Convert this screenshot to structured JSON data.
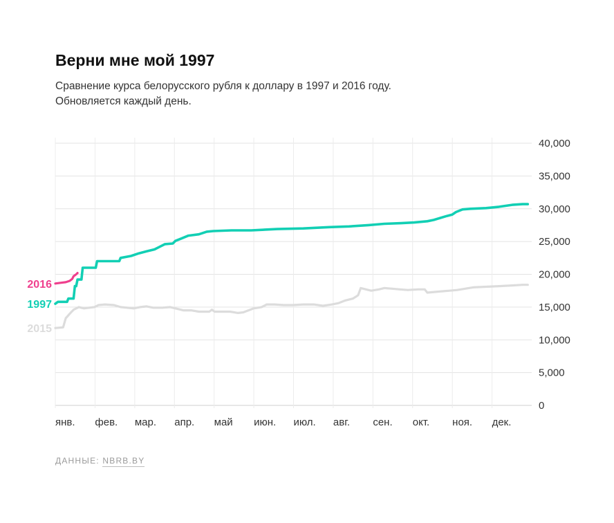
{
  "header": {
    "title": "Верни мне мой 1997",
    "subtitle_line1": "Сравнение курса белорусского рубля к доллару в 1997 и 2016 году.",
    "subtitle_line2": "Обновляется каждый день."
  },
  "source": {
    "label": "ДАННЫЕ:",
    "link": "NBRB.BY"
  },
  "chart_data": {
    "type": "line",
    "xlabel": "",
    "ylabel": "",
    "x_domain_days": [
      0,
      365
    ],
    "ylim": [
      0,
      40000
    ],
    "y_ticks": [
      0,
      5000,
      10000,
      15000,
      20000,
      25000,
      30000,
      35000,
      40000
    ],
    "y_tick_labels": [
      "0",
      "5,000",
      "10,000",
      "15,000",
      "20,000",
      "25,000",
      "30,000",
      "35,000",
      "40,000"
    ],
    "month_labels": [
      "янв.",
      "фев.",
      "мар.",
      "апр.",
      "май",
      "июн.",
      "июл.",
      "авг.",
      "сен.",
      "окт.",
      "ноя.",
      "дек."
    ],
    "grid": true,
    "legend": "inline labels at left of lines",
    "series": [
      {
        "name": "2015",
        "color": "#dcdcdc",
        "points": [
          [
            0,
            11800
          ],
          [
            6,
            11900
          ],
          [
            8,
            13300
          ],
          [
            12,
            14200
          ],
          [
            14,
            14600
          ],
          [
            16,
            14800
          ],
          [
            18,
            15000
          ],
          [
            22,
            14800
          ],
          [
            26,
            14900
          ],
          [
            30,
            15000
          ],
          [
            33,
            15300
          ],
          [
            38,
            15400
          ],
          [
            45,
            15300
          ],
          [
            50,
            15000
          ],
          [
            55,
            14900
          ],
          [
            60,
            14800
          ],
          [
            65,
            15000
          ],
          [
            70,
            15100
          ],
          [
            75,
            14900
          ],
          [
            82,
            14900
          ],
          [
            88,
            15000
          ],
          [
            92,
            14800
          ],
          [
            98,
            14500
          ],
          [
            104,
            14500
          ],
          [
            110,
            14300
          ],
          [
            118,
            14300
          ],
          [
            120,
            14600
          ],
          [
            122,
            14300
          ],
          [
            128,
            14300
          ],
          [
            134,
            14300
          ],
          [
            140,
            14100
          ],
          [
            144,
            14200
          ],
          [
            148,
            14500
          ],
          [
            152,
            14800
          ],
          [
            158,
            15000
          ],
          [
            162,
            15400
          ],
          [
            168,
            15400
          ],
          [
            175,
            15300
          ],
          [
            182,
            15300
          ],
          [
            190,
            15400
          ],
          [
            198,
            15400
          ],
          [
            205,
            15200
          ],
          [
            212,
            15400
          ],
          [
            217,
            15600
          ],
          [
            222,
            16000
          ],
          [
            228,
            16300
          ],
          [
            232,
            16800
          ],
          [
            234,
            17900
          ],
          [
            238,
            17700
          ],
          [
            242,
            17500
          ],
          [
            248,
            17700
          ],
          [
            252,
            17900
          ],
          [
            258,
            17800
          ],
          [
            264,
            17700
          ],
          [
            270,
            17600
          ],
          [
            278,
            17700
          ],
          [
            283,
            17700
          ],
          [
            285,
            17200
          ],
          [
            290,
            17300
          ],
          [
            296,
            17400
          ],
          [
            302,
            17500
          ],
          [
            308,
            17600
          ],
          [
            314,
            17800
          ],
          [
            320,
            18000
          ],
          [
            330,
            18100
          ],
          [
            340,
            18200
          ],
          [
            350,
            18300
          ],
          [
            358,
            18400
          ],
          [
            362,
            18400
          ]
        ]
      },
      {
        "name": "1997",
        "color": "#12cfb4",
        "points": [
          [
            0,
            15500
          ],
          [
            2,
            15800
          ],
          [
            9,
            15800
          ],
          [
            10,
            16300
          ],
          [
            14,
            16300
          ],
          [
            15,
            18200
          ],
          [
            16,
            18200
          ],
          [
            17,
            19200
          ],
          [
            20,
            19200
          ],
          [
            21,
            21000
          ],
          [
            31,
            21000
          ],
          [
            32,
            22000
          ],
          [
            49,
            22000
          ],
          [
            50,
            22500
          ],
          [
            58,
            22800
          ],
          [
            64,
            23200
          ],
          [
            70,
            23500
          ],
          [
            76,
            23800
          ],
          [
            80,
            24200
          ],
          [
            84,
            24600
          ],
          [
            90,
            24700
          ],
          [
            92,
            25100
          ],
          [
            97,
            25500
          ],
          [
            102,
            25900
          ],
          [
            110,
            26100
          ],
          [
            116,
            26500
          ],
          [
            121,
            26600
          ],
          [
            135,
            26700
          ],
          [
            150,
            26700
          ],
          [
            170,
            26900
          ],
          [
            190,
            27000
          ],
          [
            210,
            27200
          ],
          [
            225,
            27300
          ],
          [
            240,
            27500
          ],
          [
            252,
            27700
          ],
          [
            265,
            27800
          ],
          [
            275,
            27900
          ],
          [
            285,
            28100
          ],
          [
            290,
            28300
          ],
          [
            295,
            28600
          ],
          [
            300,
            28900
          ],
          [
            304,
            29100
          ],
          [
            307,
            29500
          ],
          [
            312,
            29900
          ],
          [
            318,
            30000
          ],
          [
            330,
            30100
          ],
          [
            340,
            30300
          ],
          [
            350,
            30600
          ],
          [
            358,
            30700
          ],
          [
            362,
            30700
          ]
        ]
      },
      {
        "name": "2016",
        "color": "#ef3f8d",
        "points": [
          [
            0,
            18600
          ],
          [
            4,
            18700
          ],
          [
            8,
            18800
          ],
          [
            11,
            19000
          ],
          [
            13,
            19300
          ],
          [
            14,
            19700
          ],
          [
            16,
            20000
          ],
          [
            17,
            20200
          ]
        ]
      }
    ]
  }
}
